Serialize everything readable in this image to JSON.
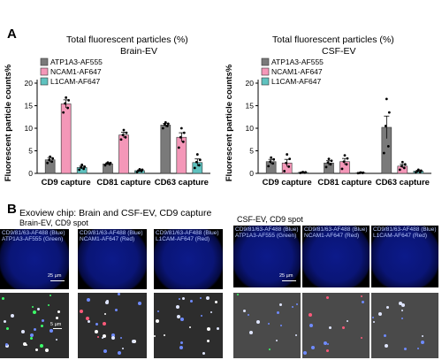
{
  "panel_a": {
    "letter": "A",
    "charts": [
      {
        "title_line1": "Total fluorescent particles (%)",
        "title_line2": "Brain-EV"
      },
      {
        "title_line1": "Total fluorescent particles (%)",
        "title_line2": "CSF-EV"
      }
    ]
  },
  "panel_b": {
    "letter": "B",
    "title": "Exoview chip: Brain and CSF-EV, CD9 capture",
    "left_subtitle": "Brain-EV, CD9 spot",
    "right_subtitle": "CSF-EV, CD9 spot",
    "tiles": {
      "brain": [
        {
          "line1": "CD9/81/63-AF488 (Blue)",
          "line2": "ATP1A3-AF555 (Green)"
        },
        {
          "line1": "CD9/81/63-AF488 (Blue)",
          "line2": "NCAM1-AF647 (Red)"
        },
        {
          "line1": "CD9/81/63-AF488 (Blue)",
          "line2": "L1CAM-AF647 (Red)"
        }
      ],
      "csf": [
        {
          "line1": "CD9/81/63-AF488 (Blue)",
          "line2": "ATP1A3-AF555 (Green)"
        },
        {
          "line1": "CD9/81/63-AF488 (Blue)",
          "line2": "NCAM1-AF647 (Red)"
        },
        {
          "line1": "CD9/81/63-AF488 (Blue)",
          "line2": "L1CAM-AF647 (Red)"
        }
      ]
    },
    "scale_top": "25 µm",
    "scale_bottom": "5 µm"
  },
  "chart_data": [
    {
      "type": "bar",
      "title": "Total fluorescent particles (%)",
      "subtitle": "Brain-EV",
      "ylabel": "Fluorescent particle counts%",
      "ylim": [
        0,
        20
      ],
      "yticks": [
        0,
        5,
        10,
        15,
        20
      ],
      "categories": [
        "CD9 capture",
        "CD81 capture",
        "CD63 capture"
      ],
      "legend_position": "top-left",
      "series": [
        {
          "name": "ATP1A3-AF555",
          "color": "#7a7a7a",
          "values": [
            3.0,
            2.1,
            10.7
          ],
          "err": [
            0.5,
            0.2,
            0.4
          ],
          "points": [
            [
              2.3,
              2.6,
              3.0,
              3.3,
              3.7
            ],
            [
              1.8,
              2.0,
              2.2,
              2.3,
              2.4
            ],
            [
              10.0,
              10.5,
              10.8,
              11.0,
              11.3
            ]
          ]
        },
        {
          "name": "NCAM1-AF647",
          "color": "#f497b8",
          "values": [
            15.4,
            8.5,
            8.0
          ],
          "err": [
            0.9,
            0.6,
            1.0
          ],
          "points": [
            [
              13.5,
              14.5,
              15.5,
              16.2,
              16.8
            ],
            [
              7.5,
              8.0,
              8.5,
              9.0,
              9.6
            ],
            [
              5.7,
              7.0,
              8.0,
              9.0,
              10.0
            ]
          ]
        },
        {
          "name": "L1CAM-AF647",
          "color": "#5fc2bf",
          "values": [
            1.3,
            0.6,
            2.4
          ],
          "err": [
            0.3,
            0.15,
            0.8
          ],
          "points": [
            [
              0.8,
              1.0,
              1.3,
              1.5,
              1.9
            ],
            [
              0.3,
              0.5,
              0.6,
              0.8,
              0.9
            ],
            [
              1.2,
              1.8,
              2.5,
              3.0,
              4.2
            ]
          ]
        }
      ]
    },
    {
      "type": "bar",
      "title": "Total fluorescent particles (%)",
      "subtitle": "CSF-EV",
      "ylabel": "Fluorescent particle counts%",
      "ylim": [
        0,
        20
      ],
      "yticks": [
        0,
        5,
        10,
        15,
        20
      ],
      "categories": [
        "CD9 capture",
        "CD81 capture",
        "CD63 capture"
      ],
      "legend_position": "top-left",
      "series": [
        {
          "name": "ATP1A3-AF555",
          "color": "#7a7a7a",
          "values": [
            2.6,
            2.3,
            10.2
          ],
          "err": [
            0.5,
            0.5,
            2.5
          ],
          "points": [
            [
              1.6,
              2.2,
              2.6,
              3.1,
              3.5
            ],
            [
              1.4,
              2.0,
              2.4,
              2.8,
              3.2
            ],
            [
              4.5,
              6.0,
              10.5,
              13.5,
              16.5
            ]
          ]
        },
        {
          "name": "NCAM1-AF647",
          "color": "#f497b8",
          "values": [
            2.3,
            2.6,
            1.6
          ],
          "err": [
            0.8,
            0.7,
            0.4
          ],
          "points": [
            [
              0.5,
              1.5,
              2.3,
              3.2,
              4.2
            ],
            [
              1.0,
              2.0,
              2.6,
              3.3,
              4.0
            ],
            [
              0.8,
              1.2,
              1.6,
              2.0,
              2.5
            ]
          ]
        },
        {
          "name": "L1CAM-AF647",
          "color": "#5fc2bf",
          "values": [
            0.2,
            0.1,
            0.5
          ],
          "err": [
            0.05,
            0.05,
            0.15
          ],
          "points": [
            [
              0.1,
              0.15,
              0.2,
              0.25,
              0.3
            ],
            [
              0.05,
              0.1,
              0.1,
              0.15,
              0.2
            ],
            [
              0.2,
              0.3,
              0.5,
              0.6,
              0.8
            ]
          ]
        }
      ]
    }
  ]
}
